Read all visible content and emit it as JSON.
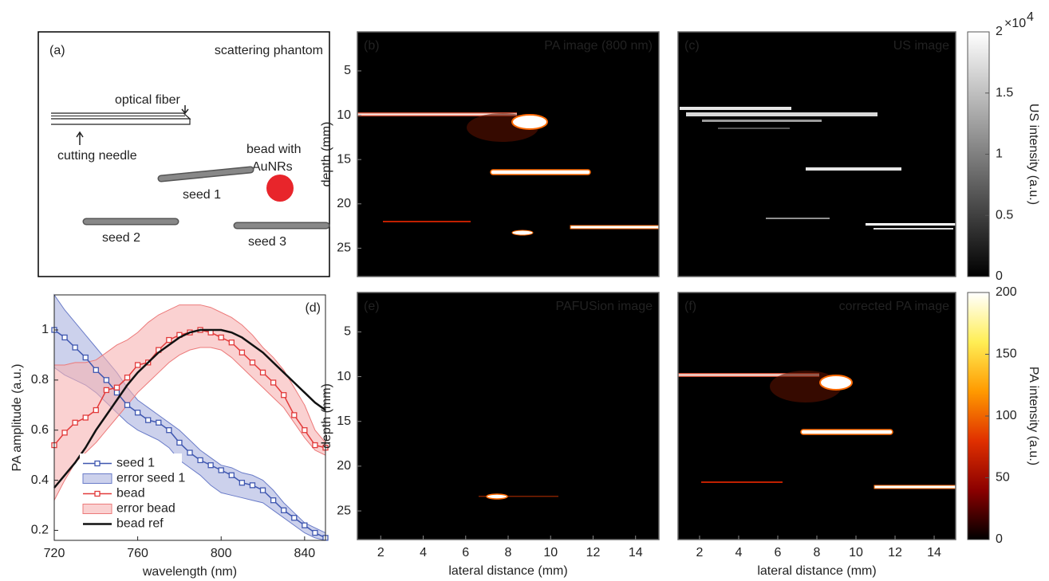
{
  "panel_a": {
    "label": "(a)",
    "title": "scattering phantom",
    "fiber": "optical fiber",
    "needle": "cutting needle",
    "bead": [
      "bead with",
      "AuNRs"
    ],
    "seeds": [
      "seed 1",
      "seed 2",
      "seed 3"
    ]
  },
  "chart_data": [
    {
      "type": "line",
      "panel_label": "(d)",
      "xlabel": "wavelength (nm)",
      "ylabel": "PA amplitude (a.u.)",
      "x": [
        720,
        725,
        730,
        735,
        740,
        745,
        750,
        755,
        760,
        765,
        770,
        775,
        780,
        785,
        790,
        795,
        800,
        805,
        810,
        815,
        820,
        825,
        830,
        835,
        840,
        845,
        850
      ],
      "xlim": [
        720,
        850
      ],
      "xticks": [
        720,
        760,
        800,
        840
      ],
      "ylim": [
        0.16,
        1.14
      ],
      "yticks": [
        0.2,
        0.4,
        0.6,
        0.8,
        1
      ],
      "legend": "lower left",
      "series": [
        {
          "name": "seed 1",
          "color": "#3f57b0",
          "marker": "square",
          "values": [
            1.0,
            0.97,
            0.93,
            0.89,
            0.84,
            0.8,
            0.75,
            0.7,
            0.67,
            0.64,
            0.63,
            0.6,
            0.55,
            0.51,
            0.48,
            0.46,
            0.44,
            0.42,
            0.39,
            0.38,
            0.36,
            0.32,
            0.28,
            0.25,
            0.22,
            0.19,
            0.17
          ]
        },
        {
          "name": "error seed 1",
          "type": "band",
          "color": "#aab3e0",
          "edge_color": "#6a7cc8",
          "upper": [
            1.14,
            1.08,
            1.03,
            0.98,
            0.93,
            0.88,
            0.83,
            0.77,
            0.72,
            0.69,
            0.66,
            0.63,
            0.6,
            0.56,
            0.52,
            0.49,
            0.46,
            0.45,
            0.43,
            0.42,
            0.4,
            0.36,
            0.31,
            0.27,
            0.23,
            0.21,
            0.19
          ],
          "lower": [
            0.85,
            0.82,
            0.8,
            0.78,
            0.75,
            0.71,
            0.67,
            0.63,
            0.6,
            0.58,
            0.56,
            0.53,
            0.48,
            0.45,
            0.42,
            0.38,
            0.35,
            0.34,
            0.33,
            0.32,
            0.31,
            0.28,
            0.25,
            0.22,
            0.19,
            0.17,
            0.16
          ]
        },
        {
          "name": "bead",
          "color": "#e23b3b",
          "marker": "square",
          "values": [
            0.54,
            0.59,
            0.63,
            0.65,
            0.68,
            0.76,
            0.77,
            0.81,
            0.86,
            0.87,
            0.92,
            0.96,
            0.98,
            0.99,
            1.0,
            0.99,
            0.97,
            0.95,
            0.91,
            0.87,
            0.83,
            0.79,
            0.74,
            0.66,
            0.6,
            0.54,
            0.53
          ]
        },
        {
          "name": "error bead",
          "type": "band",
          "color": "#f6b3b3",
          "edge_color": "#ec7a7a",
          "upper": [
            0.86,
            0.86,
            0.87,
            0.87,
            0.88,
            0.91,
            0.94,
            0.96,
            0.99,
            1.03,
            1.06,
            1.08,
            1.1,
            1.1,
            1.1,
            1.09,
            1.07,
            1.05,
            1.02,
            0.98,
            0.93,
            0.89,
            0.84,
            0.77,
            0.7,
            0.6,
            0.55
          ],
          "lower": [
            0.32,
            0.4,
            0.47,
            0.51,
            0.55,
            0.6,
            0.65,
            0.7,
            0.75,
            0.79,
            0.83,
            0.87,
            0.9,
            0.92,
            0.93,
            0.93,
            0.92,
            0.89,
            0.85,
            0.81,
            0.77,
            0.73,
            0.69,
            0.63,
            0.57,
            0.52,
            0.5
          ]
        },
        {
          "name": "bead ref",
          "color": "#111111",
          "values": [
            0.37,
            0.42,
            0.47,
            0.53,
            0.6,
            0.66,
            0.72,
            0.78,
            0.83,
            0.87,
            0.91,
            0.94,
            0.97,
            0.99,
            1.0,
            1.0,
            1.0,
            0.99,
            0.97,
            0.94,
            0.91,
            0.87,
            0.83,
            0.79,
            0.75,
            0.71,
            0.68
          ]
        }
      ]
    },
    {
      "type": "heatmap",
      "panel_label": "(b)",
      "title": "PA image (800 nm)",
      "ylabel": "depth (mm)",
      "ylim": [
        0.6,
        28.2
      ],
      "y_reversed": true,
      "yticks": [
        5,
        10,
        15,
        20,
        25
      ]
    },
    {
      "type": "heatmap",
      "panel_label": "(c)",
      "title": "US image",
      "colorbar": {
        "label": "US intensity (a.u.)",
        "lim": [
          0,
          2
        ],
        "ticks": [
          0,
          0.5,
          1,
          1.5,
          2
        ],
        "multiplier": "×10",
        "exponent": "4",
        "colors": [
          "#000000",
          "#ffffff"
        ]
      }
    },
    {
      "type": "heatmap",
      "panel_label": "(e)",
      "title": "PAFUSion image",
      "xlabel": "lateral distance (mm)",
      "ylabel": "depth (mm)",
      "xlim": [
        0.9,
        15.1
      ],
      "xticks": [
        2,
        4,
        6,
        8,
        10,
        12,
        14
      ],
      "ylim": [
        0.6,
        28.2
      ],
      "y_reversed": true,
      "yticks": [
        5,
        10,
        15,
        20,
        25
      ]
    },
    {
      "type": "heatmap",
      "panel_label": "(f)",
      "title": "corrected PA image",
      "xlabel": "lateral distance (mm)",
      "xlim": [
        0.9,
        15.1
      ],
      "xticks": [
        2,
        4,
        6,
        8,
        10,
        12,
        14
      ],
      "colorbar": {
        "label": "PA intensity (a.u.)",
        "lim": [
          0,
          200
        ],
        "ticks": [
          0,
          50,
          100,
          150,
          200
        ],
        "colors": [
          "#000000",
          "#8b0000",
          "#e03000",
          "#ff9a00",
          "#ffee55",
          "#ffffff"
        ]
      }
    }
  ]
}
